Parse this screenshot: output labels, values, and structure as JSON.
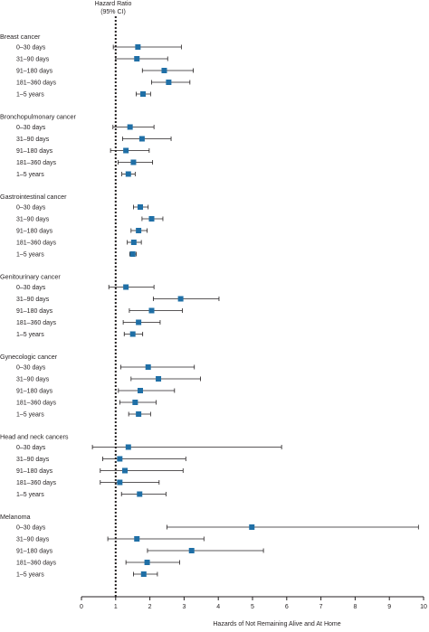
{
  "chart_data": {
    "type": "forest",
    "header": [
      "Hazard Ratio",
      "(95% CI)"
    ],
    "xlabel": "Hazards of Not Remaining Alive and At Home",
    "xlim": [
      0,
      10
    ],
    "xticks": [
      0,
      1,
      2,
      3,
      4,
      5,
      6,
      7,
      8,
      9,
      10
    ],
    "reference_line": 1,
    "colors": {
      "marker": "#1f6fa6",
      "line": "#231f20"
    },
    "groups": [
      {
        "name": "Breast cancer",
        "rows": [
          {
            "label": "0–30 days",
            "hr": 1.65,
            "lo": 0.93,
            "hi": 2.92
          },
          {
            "label": "31–90 days",
            "hr": 1.62,
            "lo": 1.0,
            "hi": 2.52
          },
          {
            "label": "91–180 days",
            "hr": 2.42,
            "lo": 1.78,
            "hi": 3.27
          },
          {
            "label": "181–360 days",
            "hr": 2.55,
            "lo": 2.05,
            "hi": 3.17
          },
          {
            "label": "1–5 years",
            "hr": 1.8,
            "lo": 1.6,
            "hi": 2.02
          }
        ]
      },
      {
        "name": "Bronchopulmonary cancer",
        "rows": [
          {
            "label": "0–30 days",
            "hr": 1.42,
            "lo": 0.92,
            "hi": 2.12
          },
          {
            "label": "31–90 days",
            "hr": 1.77,
            "lo": 1.2,
            "hi": 2.62
          },
          {
            "label": "91–180 days",
            "hr": 1.3,
            "lo": 0.85,
            "hi": 1.98
          },
          {
            "label": "181–360 days",
            "hr": 1.52,
            "lo": 1.07,
            "hi": 2.08
          },
          {
            "label": "1–5 years",
            "hr": 1.37,
            "lo": 1.18,
            "hi": 1.57
          }
        ]
      },
      {
        "name": "Gastrointestinal cancer",
        "rows": [
          {
            "label": "0–30 days",
            "hr": 1.72,
            "lo": 1.52,
            "hi": 1.95
          },
          {
            "label": "31–90 days",
            "hr": 2.05,
            "lo": 1.77,
            "hi": 2.38
          },
          {
            "label": "91–180 days",
            "hr": 1.67,
            "lo": 1.45,
            "hi": 1.92
          },
          {
            "label": "181–360 days",
            "hr": 1.53,
            "lo": 1.34,
            "hi": 1.75
          },
          {
            "label": "1–5 years",
            "hr": 1.5,
            "lo": 1.41,
            "hi": 1.6
          }
        ]
      },
      {
        "name": "Genitourinary cancer",
        "rows": [
          {
            "label": "0–30 days",
            "hr": 1.3,
            "lo": 0.8,
            "hi": 2.12
          },
          {
            "label": "31–90 days",
            "hr": 2.9,
            "lo": 2.1,
            "hi": 4.02
          },
          {
            "label": "91–180 days",
            "hr": 2.05,
            "lo": 1.4,
            "hi": 2.95
          },
          {
            "label": "181–360 days",
            "hr": 1.67,
            "lo": 1.22,
            "hi": 2.3
          },
          {
            "label": "1–5 years",
            "hr": 1.5,
            "lo": 1.25,
            "hi": 1.79
          }
        ]
      },
      {
        "name": "Gynecologic cancer",
        "rows": [
          {
            "label": "0–30 days",
            "hr": 1.95,
            "lo": 1.15,
            "hi": 3.3
          },
          {
            "label": "31–90 days",
            "hr": 2.25,
            "lo": 1.45,
            "hi": 3.48
          },
          {
            "label": "91–180 days",
            "hr": 1.72,
            "lo": 1.08,
            "hi": 2.72
          },
          {
            "label": "181–360 days",
            "hr": 1.57,
            "lo": 1.12,
            "hi": 2.18
          },
          {
            "label": "1–5 years",
            "hr": 1.67,
            "lo": 1.38,
            "hi": 2.02
          }
        ]
      },
      {
        "name": "Head and neck cancers",
        "rows": [
          {
            "label": "0–30 days",
            "hr": 1.37,
            "lo": 0.32,
            "hi": 5.85
          },
          {
            "label": "31–90 days",
            "hr": 1.12,
            "lo": 0.62,
            "hi": 3.05
          },
          {
            "label": "91–180 days",
            "hr": 1.27,
            "lo": 0.55,
            "hi": 2.97
          },
          {
            "label": "181–360 days",
            "hr": 1.12,
            "lo": 0.55,
            "hi": 2.27
          },
          {
            "label": "1–5 years",
            "hr": 1.7,
            "lo": 1.17,
            "hi": 2.47
          }
        ]
      },
      {
        "name": "Melanoma",
        "rows": [
          {
            "label": "0–30 days",
            "hr": 4.98,
            "lo": 2.5,
            "hi": 9.85
          },
          {
            "label": "31–90 days",
            "hr": 1.62,
            "lo": 0.77,
            "hi": 3.58
          },
          {
            "label": "91–180 days",
            "hr": 3.22,
            "lo": 1.93,
            "hi": 5.32
          },
          {
            "label": "181–360 days",
            "hr": 1.92,
            "lo": 1.3,
            "hi": 2.87
          },
          {
            "label": "1–5 years",
            "hr": 1.82,
            "lo": 1.52,
            "hi": 2.22
          }
        ]
      }
    ]
  }
}
